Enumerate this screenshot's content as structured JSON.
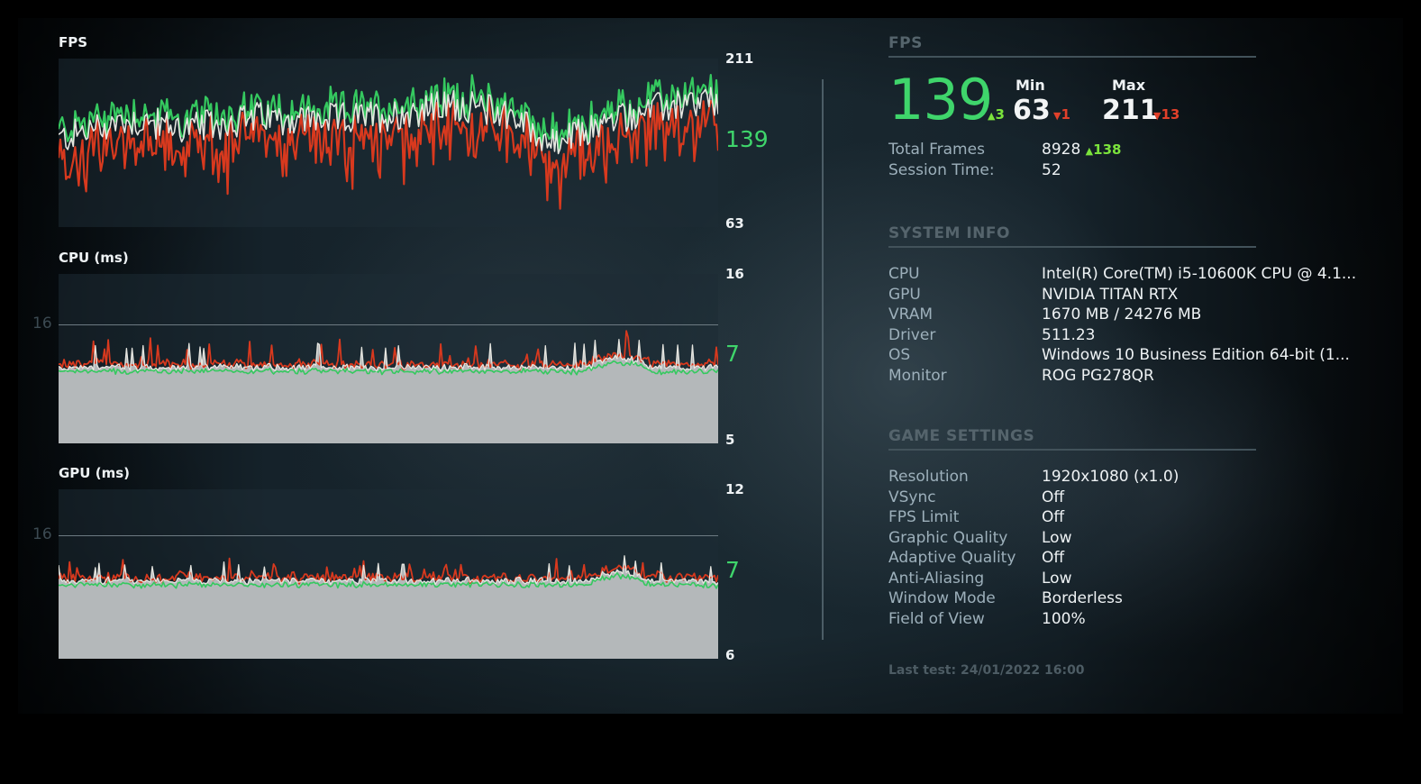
{
  "colors": {
    "accent_green": "#3fd56b",
    "delta_up": "#7be33c",
    "delta_down": "#e0402a",
    "line_green": "#35c95f",
    "line_red": "#d8391e",
    "line_white": "#e6e6e0",
    "fill_gray": "#b4b8ba"
  },
  "charts": {
    "fps": {
      "label": "FPS",
      "max": "211",
      "current": "139",
      "min": "63"
    },
    "cpu": {
      "label": "CPU (ms)",
      "max": "16",
      "current": "7",
      "min": "5",
      "ref_value": "16"
    },
    "gpu": {
      "label": "GPU (ms)",
      "max": "12",
      "current": "7",
      "min": "6",
      "ref_value": "16"
    }
  },
  "fps_panel": {
    "title": "FPS",
    "average": "139",
    "average_delta": "3",
    "min_label": "Min",
    "min_value": "63",
    "min_delta": "1",
    "max_label": "Max",
    "max_value": "211",
    "max_delta": "13",
    "total_frames_label": "Total Frames",
    "total_frames_value": "8928",
    "total_frames_delta": "138",
    "session_time_label": "Session Time:",
    "session_time_value": "52"
  },
  "system_info": {
    "title": "SYSTEM INFO",
    "rows": [
      {
        "key": "CPU",
        "value": "Intel(R) Core(TM) i5-10600K CPU @ 4.1..."
      },
      {
        "key": "GPU",
        "value": "NVIDIA TITAN RTX"
      },
      {
        "key": "VRAM",
        "value": "1670 MB / 24276 MB"
      },
      {
        "key": "Driver",
        "value": "511.23"
      },
      {
        "key": "OS",
        "value": "Windows 10 Business Edition 64-bit (1..."
      },
      {
        "key": "Monitor",
        "value": "ROG PG278QR"
      }
    ]
  },
  "game_settings": {
    "title": "GAME SETTINGS",
    "rows": [
      {
        "key": "Resolution",
        "value": "1920x1080 (x1.0)"
      },
      {
        "key": "VSync",
        "value": "Off"
      },
      {
        "key": "FPS Limit",
        "value": "Off"
      },
      {
        "key": "Graphic Quality",
        "value": "Low"
      },
      {
        "key": "Adaptive Quality",
        "value": "Off"
      },
      {
        "key": "Anti-Aliasing",
        "value": "Low"
      },
      {
        "key": "Window Mode",
        "value": "Borderless"
      },
      {
        "key": "Field of View",
        "value": "100%"
      }
    ]
  },
  "last_test": "Last test: 24/01/2022 16:00",
  "glyphs": {
    "up": "▲",
    "down": "▼"
  },
  "chart_data": [
    {
      "type": "line",
      "title": "FPS",
      "series": [
        {
          "name": "max",
          "color": "#35c95f"
        },
        {
          "name": "average",
          "color": "#e6e6e0"
        },
        {
          "name": "min",
          "color": "#d8391e"
        }
      ],
      "ylim": [
        63,
        211
      ],
      "ytick_labels": [
        "211",
        "139",
        "63"
      ],
      "current": 139,
      "profile_x": [
        0,
        0.1,
        0.2,
        0.3,
        0.4,
        0.5,
        0.6,
        0.68,
        0.75,
        0.85,
        0.92,
        1.0
      ],
      "profile_y": [
        140,
        158,
        150,
        160,
        158,
        162,
        172,
        165,
        135,
        160,
        170,
        175
      ]
    },
    {
      "type": "area",
      "title": "CPU (ms)",
      "ylim": [
        5,
        16
      ],
      "ytick_labels": [
        "16",
        "7",
        "5"
      ],
      "reference_line": 16,
      "current": 7,
      "typical_range_ms": [
        6.5,
        8.5
      ]
    },
    {
      "type": "area",
      "title": "GPU (ms)",
      "ylim": [
        6,
        12
      ],
      "ytick_labels": [
        "12",
        "7",
        "6"
      ],
      "reference_line": 16,
      "current": 7,
      "typical_range_ms": [
        6.8,
        8.2
      ]
    }
  ]
}
